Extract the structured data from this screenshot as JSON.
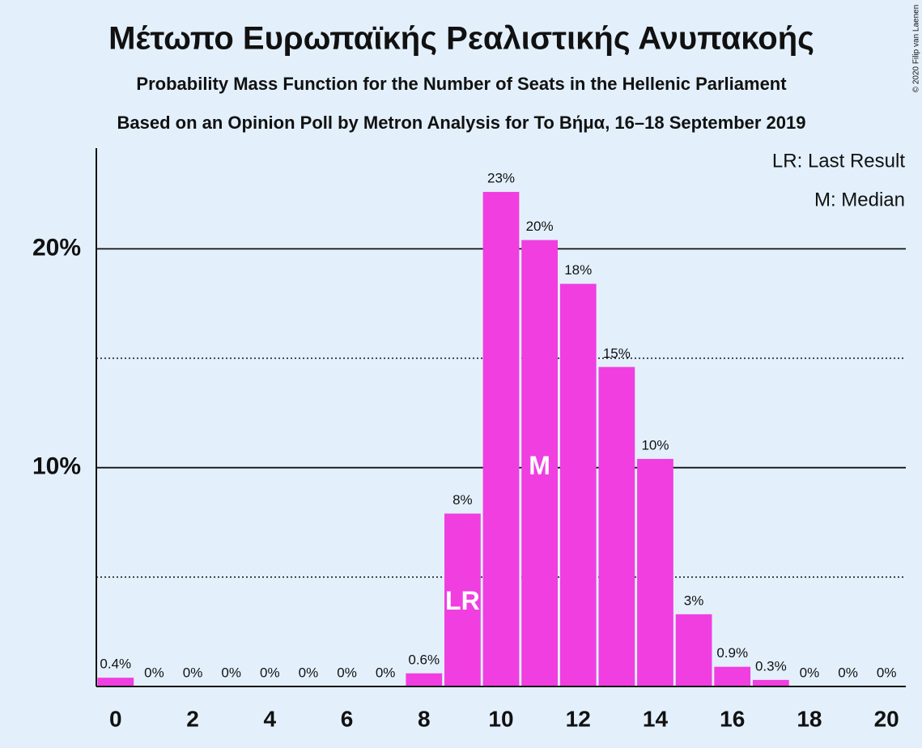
{
  "chart_data": {
    "type": "bar",
    "title": "Μέτωπο Ευρωπαϊκής Ρεαλιστικής Ανυπακοής",
    "subtitles": [
      "Probability Mass Function for the Number of Seats in the Hellenic Parliament",
      "Based on an Opinion Poll by Metron Analysis for To Βήμα, 16–18 September 2019"
    ],
    "x": [
      0,
      1,
      2,
      3,
      4,
      5,
      6,
      7,
      8,
      9,
      10,
      11,
      12,
      13,
      14,
      15,
      16,
      17,
      18,
      19,
      20
    ],
    "values": [
      0.4,
      0,
      0,
      0,
      0,
      0,
      0,
      0,
      0.6,
      7.9,
      22.6,
      20.4,
      18.4,
      14.6,
      10.4,
      3.3,
      0.9,
      0.3,
      0,
      0,
      0
    ],
    "value_labels": [
      "0.4%",
      "0%",
      "0%",
      "0%",
      "0%",
      "0%",
      "0%",
      "0%",
      "0.6%",
      "8%",
      "23%",
      "20%",
      "18%",
      "15%",
      "10%",
      "3%",
      "0.9%",
      "0.3%",
      "0%",
      "0%",
      "0%"
    ],
    "color": "#f03ee0",
    "xlim": [
      -0.5,
      20.5
    ],
    "xticks": [
      0,
      2,
      4,
      6,
      8,
      10,
      12,
      14,
      16,
      18,
      20
    ],
    "ylim": [
      0,
      24.6
    ],
    "yticks": [
      {
        "value": 10,
        "label": "10%"
      },
      {
        "value": 20,
        "label": "20%"
      }
    ],
    "minor_grid": [
      5,
      15
    ],
    "markers": [
      {
        "label": "LR",
        "x": 9
      },
      {
        "label": "M",
        "x": 11
      }
    ],
    "legend": [
      "LR: Last Result",
      "M: Median"
    ],
    "credit": "© 2020 Filip van Laenen"
  }
}
